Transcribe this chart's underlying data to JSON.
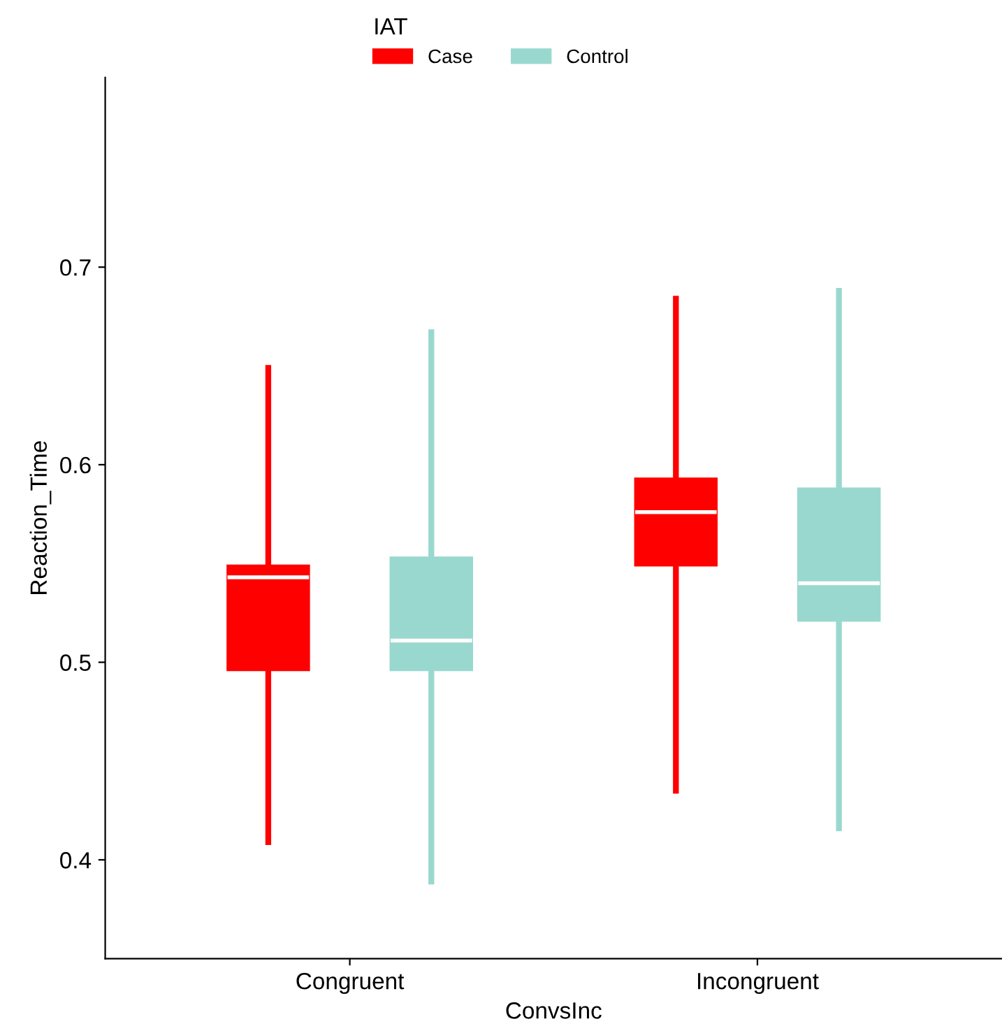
{
  "chart_data": {
    "type": "box",
    "xlabel": "ConvsInc",
    "ylabel": "Reaction_Time",
    "legend_title": "IAT",
    "legend": "top",
    "grid": false,
    "categories": [
      "Congruent",
      "Incongruent"
    ],
    "ylim": [
      0.35,
      0.796
    ],
    "yticks": [
      0.4,
      0.5,
      0.6,
      0.7
    ],
    "series": [
      {
        "name": "Case",
        "color": "#ff0000",
        "boxes": [
          {
            "low": 0.409,
            "q1": 0.496,
            "median": 0.543,
            "q3": 0.549,
            "high": 0.649
          },
          {
            "low": 0.435,
            "q1": 0.549,
            "median": 0.576,
            "q3": 0.593,
            "high": 0.684
          }
        ]
      },
      {
        "name": "Control",
        "color": "#99d8cf",
        "boxes": [
          {
            "low": 0.389,
            "q1": 0.496,
            "median": 0.511,
            "q3": 0.553,
            "high": 0.667
          },
          {
            "low": 0.416,
            "q1": 0.521,
            "median": 0.54,
            "q3": 0.588,
            "high": 0.688
          }
        ]
      }
    ]
  }
}
